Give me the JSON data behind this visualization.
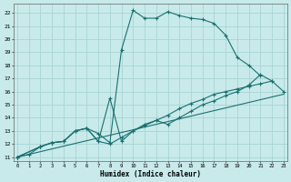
{
  "xlabel": "Humidex (Indice chaleur)",
  "bg_color": "#c8eaea",
  "grid_color": "#a8d4d4",
  "line_color": "#1a7070",
  "ylim": [
    10.7,
    22.7
  ],
  "xlim": [
    -0.3,
    23.3
  ],
  "yticks": [
    11,
    12,
    13,
    14,
    15,
    16,
    17,
    18,
    19,
    20,
    21,
    22
  ],
  "xticks": [
    0,
    1,
    2,
    3,
    4,
    5,
    6,
    7,
    8,
    9,
    10,
    11,
    12,
    13,
    14,
    15,
    16,
    17,
    18,
    19,
    20,
    21,
    22,
    23
  ],
  "curves": [
    {
      "x": [
        0,
        1,
        2,
        3,
        4,
        5,
        6,
        7,
        8,
        9,
        10,
        11,
        12,
        13,
        14,
        15,
        16,
        17,
        18,
        19,
        20,
        21
      ],
      "y": [
        11,
        11.2,
        11.8,
        12.1,
        12.2,
        13.0,
        13.2,
        12.8,
        12.1,
        19.2,
        22.2,
        21.6,
        21.6,
        22.1,
        21.8,
        21.6,
        21.5,
        21.2,
        20.3,
        18.6,
        18.0,
        17.2
      ],
      "marker": true
    },
    {
      "x": [
        0,
        2,
        3,
        4,
        5,
        6,
        7,
        8,
        9,
        10,
        11,
        12,
        13,
        14,
        15,
        16,
        17,
        18,
        19,
        20,
        21,
        22
      ],
      "y": [
        11,
        11.8,
        12.1,
        12.2,
        13.0,
        13.2,
        12.2,
        15.5,
        12.2,
        13.0,
        13.5,
        13.8,
        13.5,
        14.0,
        14.5,
        15.0,
        15.3,
        15.7,
        16.0,
        16.5,
        17.3,
        16.8
      ],
      "marker": true
    },
    {
      "x": [
        0,
        2,
        3,
        4,
        5,
        6,
        7,
        8,
        9,
        10,
        11,
        12,
        13,
        14,
        15,
        16,
        17,
        18,
        19,
        20,
        21,
        22,
        23
      ],
      "y": [
        11,
        11.8,
        12.1,
        12.2,
        13.0,
        13.2,
        12.2,
        12.0,
        12.5,
        13.0,
        13.4,
        13.8,
        14.2,
        14.7,
        15.1,
        15.4,
        15.8,
        16.0,
        16.2,
        16.4,
        16.6,
        16.8,
        16.0
      ],
      "marker": true
    },
    {
      "x": [
        0,
        23
      ],
      "y": [
        11.0,
        15.8
      ],
      "marker": false
    }
  ]
}
